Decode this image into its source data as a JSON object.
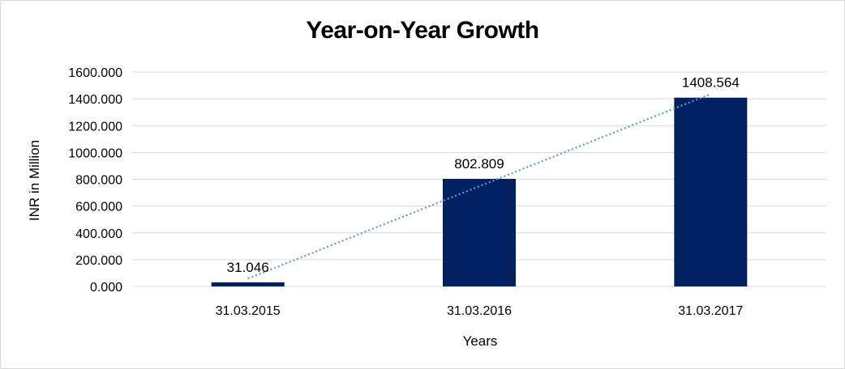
{
  "chart_data": {
    "type": "bar",
    "title": "Year-on-Year Growth",
    "xlabel": "Years",
    "ylabel": "INR in Million",
    "categories": [
      "31.03.2015",
      "31.03.2016",
      "31.03.2017"
    ],
    "values": [
      31.046,
      802.809,
      1408.564
    ],
    "data_labels": [
      "31.046",
      "802.809",
      "1408.564"
    ],
    "ylim": [
      0,
      1600
    ],
    "y_ticks": [
      "0.000",
      "200.000",
      "400.000",
      "600.000",
      "800.000",
      "1000.000",
      "1200.000",
      "1400.000",
      "1600.000"
    ],
    "y_tick_values": [
      0,
      200,
      400,
      600,
      800,
      1000,
      1200,
      1400,
      1600
    ],
    "grid": true,
    "trendline": "linear",
    "colors": {
      "bar": "#002060",
      "trendline": "#5b9bd5",
      "grid": "#d9d9d9"
    }
  }
}
